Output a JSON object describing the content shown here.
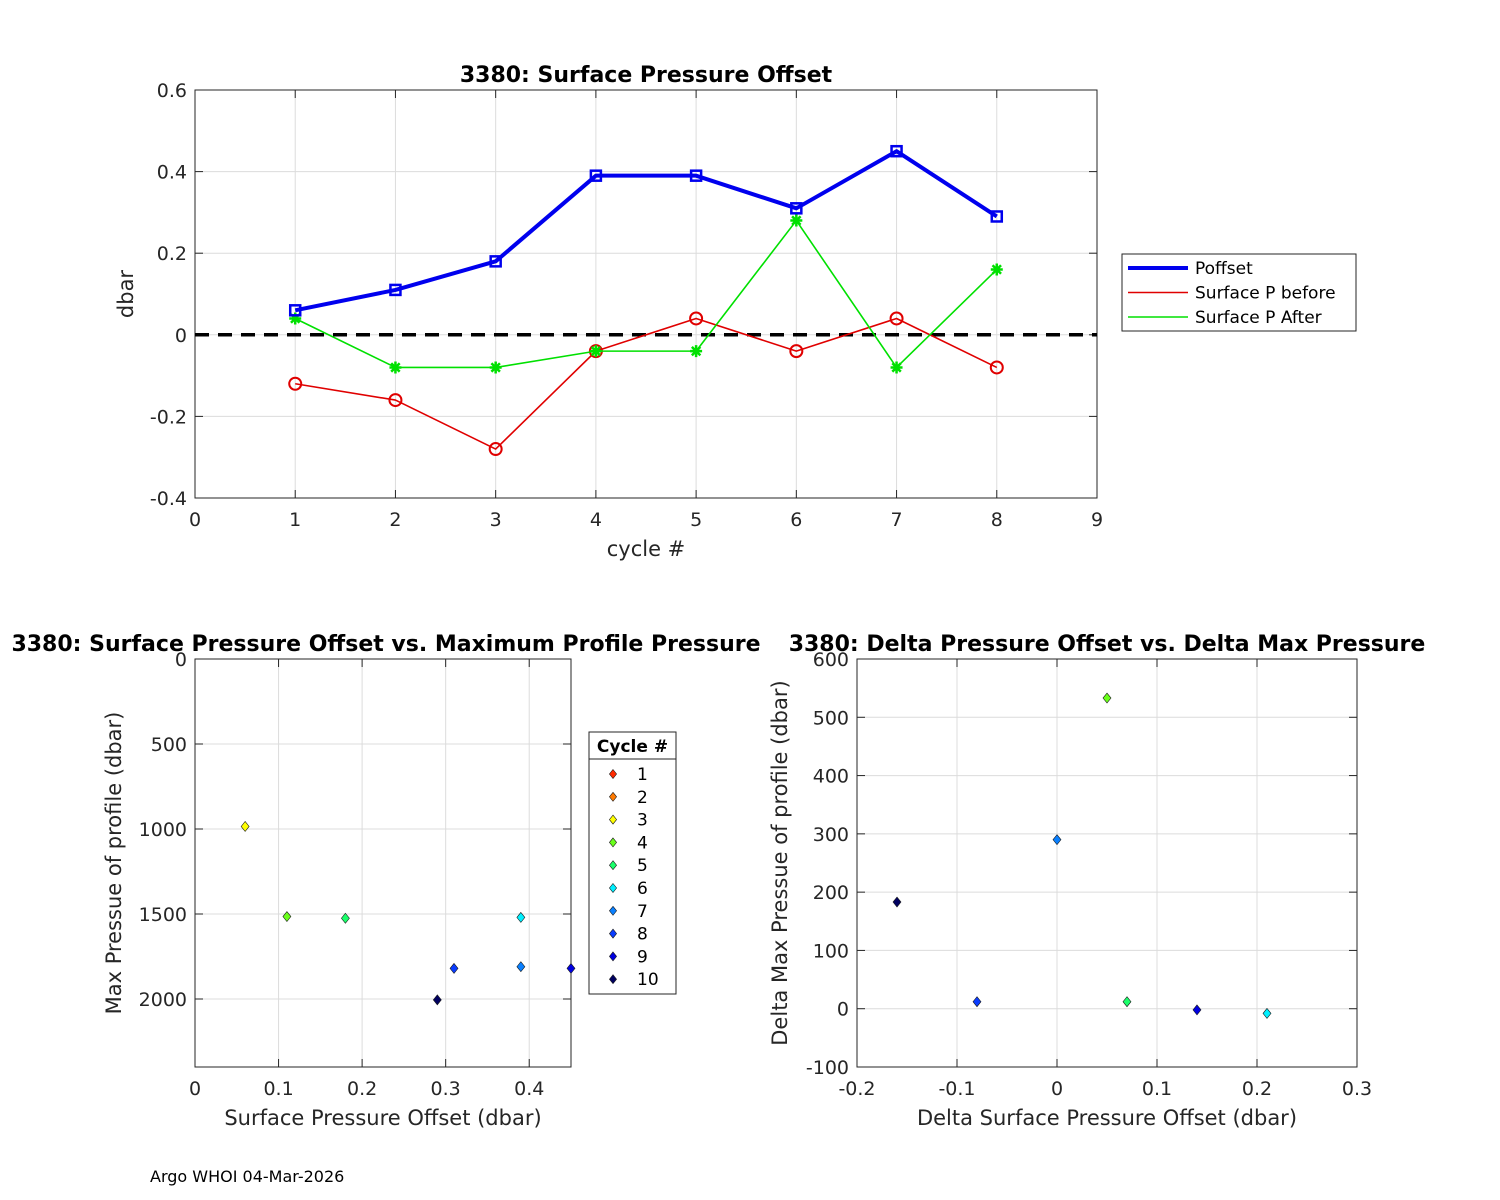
{
  "footer": "Argo WHOI 04-Mar-2026",
  "chart_data": [
    {
      "type": "line",
      "title": "3380: Surface Pressure Offset",
      "xlabel": "cycle #",
      "ylabel": "dbar",
      "xlim": [
        0,
        9
      ],
      "ylim": [
        -0.4,
        0.6
      ],
      "xticks": [
        0,
        1,
        2,
        3,
        4,
        5,
        6,
        7,
        8,
        9
      ],
      "xtick_labels": [
        "0",
        "1",
        "2",
        "3",
        "4",
        "5",
        "6",
        "7",
        "8",
        "9"
      ],
      "yticks": [
        -0.4,
        -0.2,
        0,
        0.2,
        0.4,
        0.6
      ],
      "ytick_labels": [
        "-0.4",
        "-0.2",
        "0",
        "0.2",
        "0.4",
        "0.6"
      ],
      "grid": true,
      "legend_position": "right",
      "reference_line": {
        "y": 0,
        "style": "dashed",
        "color": "#000000"
      },
      "x": [
        1,
        2,
        3,
        4,
        5,
        6,
        7,
        8
      ],
      "series": [
        {
          "name": "Poffset",
          "color": "#0000ee",
          "marker": "square",
          "width": 4,
          "values": [
            0.06,
            0.11,
            0.18,
            0.39,
            0.39,
            0.31,
            0.45,
            0.29
          ]
        },
        {
          "name": "Surface P before",
          "color": "#e00000",
          "marker": "circle",
          "width": 1.6,
          "values": [
            -0.12,
            -0.16,
            -0.28,
            -0.04,
            0.04,
            -0.04,
            0.04,
            -0.08
          ]
        },
        {
          "name": "Surface P After",
          "color": "#00e000",
          "marker": "star",
          "width": 1.6,
          "values": [
            0.04,
            -0.08,
            -0.08,
            -0.04,
            -0.04,
            0.28,
            -0.08,
            0.16
          ]
        }
      ]
    },
    {
      "type": "scatter",
      "title": "3380: Surface Pressure Offset vs. Maximum Profile Pressure",
      "xlabel": "Surface Pressure Offset (dbar)",
      "ylabel": "Max Pressue of profile (dbar)",
      "xlim": [
        0,
        0.45
      ],
      "ylim": [
        0,
        2400
      ],
      "y_reversed": true,
      "xticks": [
        0,
        0.1,
        0.2,
        0.3,
        0.4
      ],
      "xtick_labels": [
        "0",
        "0.1",
        "0.2",
        "0.3",
        "0.4"
      ],
      "yticks": [
        0,
        500,
        1000,
        1500,
        2000
      ],
      "ytick_labels": [
        "0",
        "500",
        "1000",
        "1500",
        "2000"
      ],
      "grid": true,
      "legend_title": "Cycle #",
      "legend_position": "right",
      "legend": [
        {
          "label": "1",
          "color": "#ff2a00"
        },
        {
          "label": "2",
          "color": "#ff7a00"
        },
        {
          "label": "3",
          "color": "#ffff00"
        },
        {
          "label": "4",
          "color": "#6aff1a"
        },
        {
          "label": "5",
          "color": "#1aff6a"
        },
        {
          "label": "6",
          "color": "#00f0ff"
        },
        {
          "label": "7",
          "color": "#0a80ff"
        },
        {
          "label": "8",
          "color": "#0a3cff"
        },
        {
          "label": "9",
          "color": "#0000e0"
        },
        {
          "label": "10",
          "color": "#000060"
        }
      ],
      "points": [
        {
          "x": 0.06,
          "y": 985,
          "color": "#ffff00"
        },
        {
          "x": 0.11,
          "y": 1515,
          "color": "#6aff1a"
        },
        {
          "x": 0.18,
          "y": 1525,
          "color": "#1aff6a"
        },
        {
          "x": 0.39,
          "y": 1520,
          "color": "#00f0ff"
        },
        {
          "x": 0.39,
          "y": 1810,
          "color": "#0a80ff"
        },
        {
          "x": 0.31,
          "y": 1820,
          "color": "#0a3cff"
        },
        {
          "x": 0.45,
          "y": 1820,
          "color": "#0000e0"
        },
        {
          "x": 0.29,
          "y": 2005,
          "color": "#000060"
        }
      ]
    },
    {
      "type": "scatter",
      "title": "3380: Delta Pressure Offset vs. Delta Max Pressure",
      "xlabel": "Delta Surface Pressure Offset (dbar)",
      "ylabel": "Delta Max Pressue of profile (dbar)",
      "xlim": [
        -0.2,
        0.3
      ],
      "ylim": [
        -100,
        600
      ],
      "xticks": [
        -0.2,
        -0.1,
        0,
        0.1,
        0.2,
        0.3
      ],
      "xtick_labels": [
        "-0.2",
        "-0.1",
        "0",
        "0.1",
        "0.2",
        "0.3"
      ],
      "yticks": [
        -100,
        0,
        100,
        200,
        300,
        400,
        500,
        600
      ],
      "ytick_labels": [
        "-100",
        "0",
        "100",
        "200",
        "300",
        "400",
        "500",
        "600"
      ],
      "grid": true,
      "points": [
        {
          "x": 0.05,
          "y": 533,
          "color": "#6aff1a"
        },
        {
          "x": 0.0,
          "y": 290,
          "color": "#0a80ff"
        },
        {
          "x": -0.16,
          "y": 183,
          "color": "#000060"
        },
        {
          "x": -0.08,
          "y": 12,
          "color": "#0a3cff"
        },
        {
          "x": 0.07,
          "y": 12,
          "color": "#1aff6a"
        },
        {
          "x": 0.14,
          "y": -2,
          "color": "#0000e0"
        },
        {
          "x": 0.21,
          "y": -8,
          "color": "#00f0ff"
        }
      ]
    }
  ]
}
